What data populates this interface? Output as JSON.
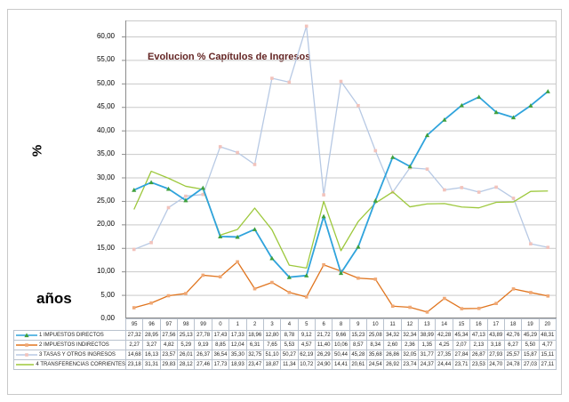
{
  "frame": {
    "background": "#ffffff",
    "border_color": "#c9c9c9"
  },
  "chart_data": {
    "type": "line",
    "title": "Evolucion % Capítulos de Ingresos",
    "title_color": "#632423",
    "ylabel": "%",
    "xlabel": "años",
    "grid": true,
    "legend_position": "left-of-data-table",
    "number_format": "comma-decimal",
    "axis": {
      "ymin": 0,
      "ymax_labeled": 60,
      "ytick_step": 5,
      "ytick_values": [
        0,
        5,
        10,
        15,
        20,
        25,
        30,
        35,
        40,
        45,
        50,
        55,
        60
      ],
      "ytick_labels": [
        "0,00",
        "5,00",
        "10,00",
        "15,00",
        "20,00",
        "25,00",
        "30,00",
        "35,00",
        "40,00",
        "45,00",
        "50,00",
        "55,00",
        "60,00"
      ],
      "grid_color": "#c9c9c9",
      "axis_color": "#8c8c8c"
    },
    "categories": [
      "95",
      "96",
      "97",
      "98",
      "99",
      "0",
      "1",
      "2",
      "3",
      "4",
      "5",
      "6",
      "8",
      "9",
      "10",
      "11",
      "12",
      "13",
      "14",
      "15",
      "16",
      "17",
      "18",
      "19",
      "20"
    ],
    "series": [
      {
        "name": "1 IMPUESTOS DIRECTOS",
        "color": "#2fa3dc",
        "line_width": 1.8,
        "marker": "triangle",
        "marker_color": "#3fa03c",
        "values": [
          27.32,
          28.95,
          27.56,
          25.13,
          27.78,
          17.43,
          17.33,
          18.96,
          12.8,
          8.78,
          9.12,
          21.72,
          9.66,
          15.23,
          25.08,
          34.32,
          32.34,
          38.99,
          42.28,
          45.34,
          47.13,
          43.89,
          42.76,
          45.29,
          48.31
        ]
      },
      {
        "name": "2 IMPUESTOS INDIRECTOS",
        "color": "#e0751f",
        "line_width": 1.3,
        "marker": "square",
        "marker_color": "#f0a875",
        "values": [
          2.27,
          3.27,
          4.82,
          5.29,
          9.19,
          8.85,
          12.04,
          6.31,
          7.65,
          5.53,
          4.57,
          11.4,
          10.06,
          8.57,
          8.34,
          2.6,
          2.36,
          1.35,
          4.25,
          2.07,
          2.13,
          3.18,
          6.27,
          5.5,
          4.77
        ]
      },
      {
        "name": "3 TASAS Y OTROS INGRESOS",
        "color": "#b7c9e4",
        "line_width": 1.3,
        "marker": "square",
        "marker_color": "#f2c3bc",
        "values": [
          14.68,
          16.13,
          23.57,
          26.01,
          26.37,
          36.54,
          35.3,
          32.75,
          51.1,
          50.27,
          62.19,
          26.29,
          50.44,
          45.28,
          35.68,
          26.86,
          32.05,
          31.77,
          27.35,
          27.84,
          26.87,
          27.93,
          25.57,
          15.87,
          15.11
        ]
      },
      {
        "name": "4 TRANSFERENCIAS CORRIENTES",
        "color": "#9dc83c",
        "line_width": 1.3,
        "marker": "none",
        "marker_color": "",
        "values": [
          23.18,
          31.31,
          29.83,
          28.12,
          27.46,
          17.73,
          18.93,
          23.47,
          18.87,
          11.34,
          10.72,
          24.9,
          14.41,
          20.61,
          24.54,
          26.92,
          23.74,
          24.37,
          24.44,
          23.71,
          23.53,
          24.7,
          24.78,
          27.03,
          27.11
        ]
      }
    ]
  }
}
